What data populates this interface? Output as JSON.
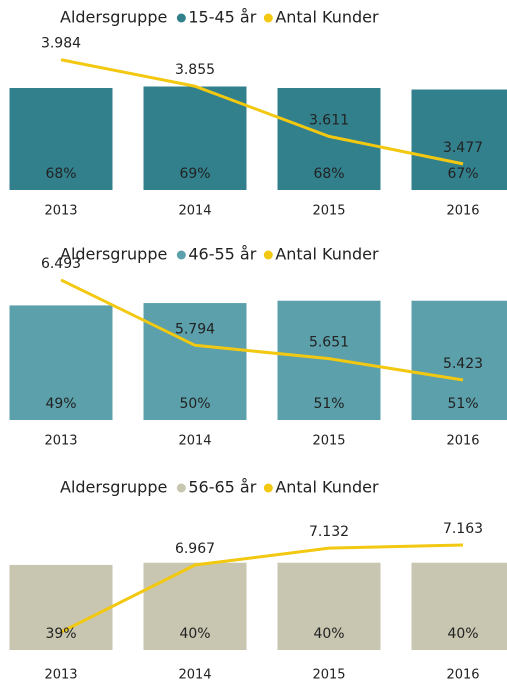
{
  "chart_data": [
    {
      "type": "combo",
      "legend_title": "Aldersgruppe",
      "categories": [
        "2013",
        "2014",
        "2015",
        "2016"
      ],
      "series": [
        {
          "name": "15-45 år",
          "type": "bar",
          "color": "#31808c",
          "values": [
            68,
            69,
            68,
            67
          ],
          "value_labels": [
            "68%",
            "69%",
            "68%",
            "67%"
          ]
        },
        {
          "name": "Antal Kunder",
          "type": "line",
          "axis": "y2",
          "color": "#f2c811",
          "values": [
            3984,
            3855,
            3611,
            3477
          ],
          "value_labels": [
            "3.984",
            "3.855",
            "3.611",
            "3.477"
          ]
        }
      ],
      "ylim": [
        0,
        100
      ],
      "y2lim": [
        3350,
        4080
      ]
    },
    {
      "type": "combo",
      "legend_title": "Aldersgruppe",
      "categories": [
        "2013",
        "2014",
        "2015",
        "2016"
      ],
      "series": [
        {
          "name": "46-55 år",
          "type": "bar",
          "color": "#5ba0ab",
          "values": [
            49,
            50,
            51,
            51
          ],
          "value_labels": [
            "49%",
            "50%",
            "51%",
            "51%"
          ]
        },
        {
          "name": "Antal Kunder",
          "type": "line",
          "axis": "y2",
          "color": "#f2c811",
          "values": [
            6493,
            5794,
            5651,
            5423
          ],
          "value_labels": [
            "6.493",
            "5.794",
            "5.651",
            "5.423"
          ]
        }
      ],
      "ylim": [
        0,
        62
      ],
      "y2lim": [
        4995,
        6546
      ]
    },
    {
      "type": "combo",
      "legend_title": "Aldersgruppe",
      "categories": [
        "2013",
        "2014",
        "2015",
        "2016"
      ],
      "series": [
        {
          "name": "56-65 år",
          "type": "bar",
          "color": "#c8c6b0",
          "values": [
            39,
            40,
            40,
            40
          ],
          "value_labels": [
            "39%",
            "40%",
            "40%",
            "40%"
          ]
        },
        {
          "name": "Antal Kunder",
          "type": "line",
          "axis": "y2",
          "color": "#f2c811",
          "values": [
            6310,
            6967,
            7132,
            7163
          ],
          "value_labels": [
            null,
            "6.967",
            "7.132",
            "7.163"
          ]
        }
      ],
      "ylim": [
        0,
        55
      ],
      "y2lim": [
        6134,
        7310
      ]
    }
  ]
}
